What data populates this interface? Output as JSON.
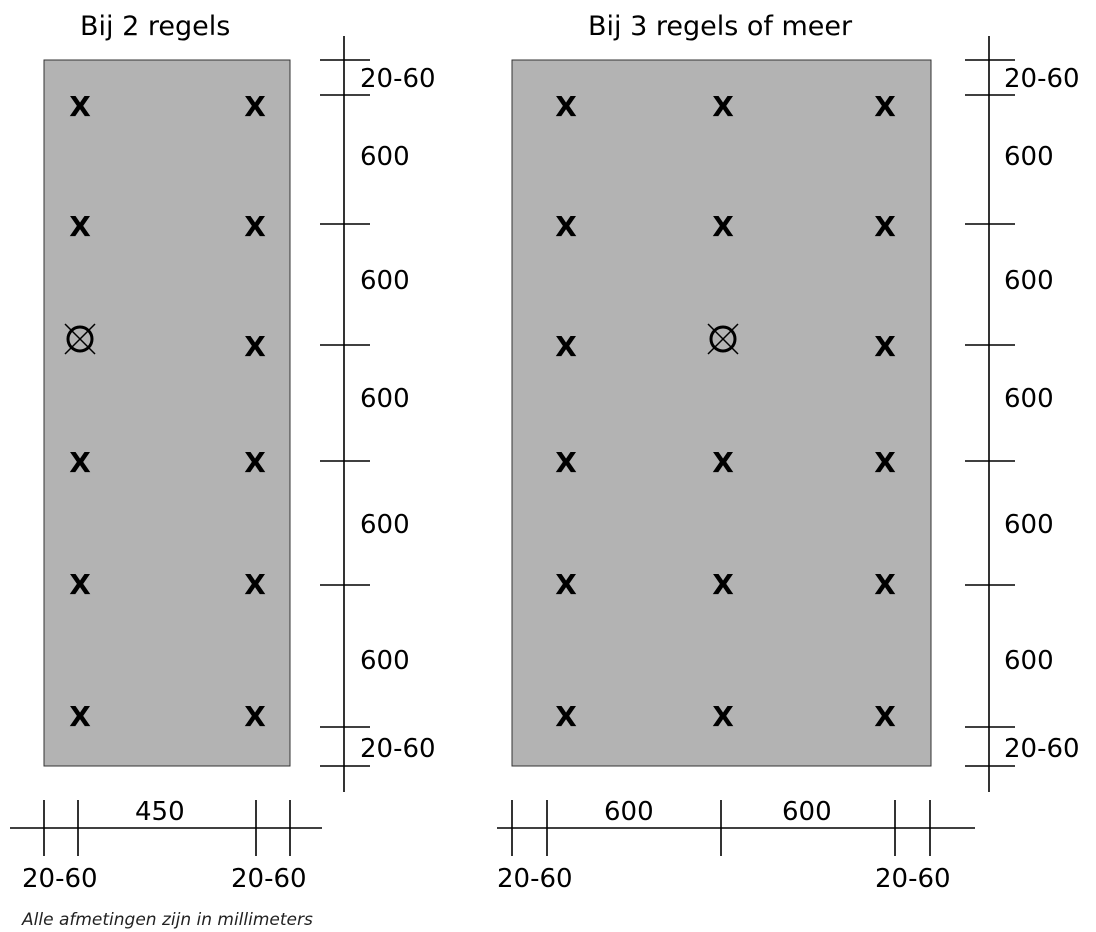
{
  "left": {
    "title": "Bij 2 regels",
    "screw_mark": "X",
    "vertical_dims": [
      "20-60",
      "600",
      "600",
      "600",
      "600",
      "600",
      "20-60"
    ],
    "bottom_dims": {
      "span": "450",
      "left_edge": "20-60",
      "right_edge": "20-60"
    },
    "columns": 2,
    "rows": 6,
    "special_point": {
      "row": 3,
      "column": 1,
      "symbol": "circle-cross"
    }
  },
  "right": {
    "title": "Bij 3 regels of meer",
    "screw_mark": "X",
    "vertical_dims": [
      "20-60",
      "600",
      "600",
      "600",
      "600",
      "600",
      "20-60"
    ],
    "bottom_dims": {
      "span_1": "600",
      "span_2": "600",
      "left_edge": "20-60",
      "right_edge": "20-60"
    },
    "columns": 3,
    "rows": 6,
    "special_point": {
      "row": 3,
      "column": 2,
      "symbol": "circle-cross"
    }
  },
  "footnote": "Alle afmetingen zijn in millimeters"
}
